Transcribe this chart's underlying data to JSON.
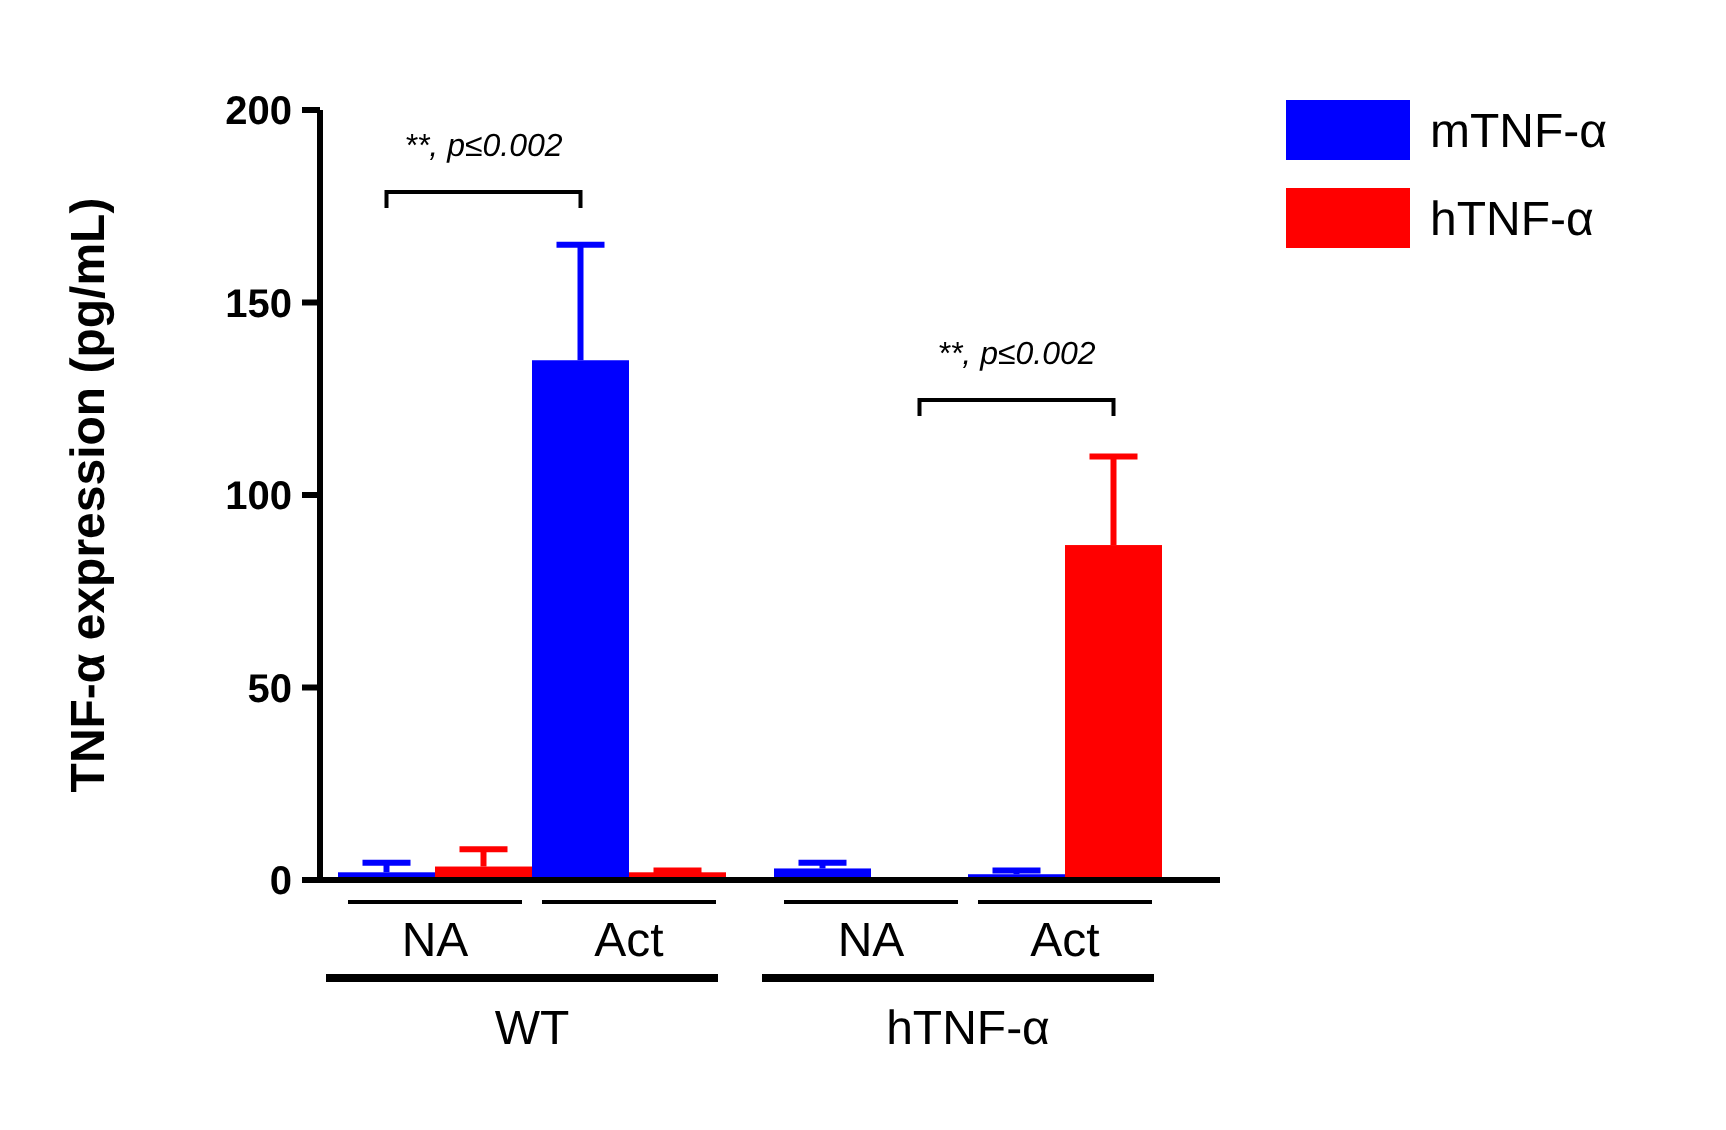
{
  "chart_data": {
    "type": "bar",
    "ylabel": "TNF-α expression (pg/mL)",
    "categories": [
      "NA",
      "Act",
      "NA",
      "Act"
    ],
    "series": [
      {
        "name": "mTNF-α",
        "color": "#0000ff",
        "values": [
          2,
          135,
          3,
          1.5
        ],
        "errors": [
          [
            2,
            4.5
          ],
          [
            135,
            165
          ],
          [
            3,
            4.5
          ],
          [
            1.5,
            2.5
          ]
        ]
      },
      {
        "name": "hTNF-α",
        "color": "#ff0000",
        "values": [
          3.5,
          2,
          0,
          87
        ],
        "errors": [
          [
            3.5,
            8
          ],
          [
            2,
            2.5
          ],
          null,
          [
            87,
            110
          ]
        ]
      }
    ],
    "ylim": [
      0,
      200
    ],
    "yticks": [
      0,
      50,
      100,
      150,
      200
    ],
    "legend": "top right",
    "annotations": [
      "**, p≤0.002",
      "**, p≤0.002",
      "WT",
      "hTNF-α"
    ]
  }
}
